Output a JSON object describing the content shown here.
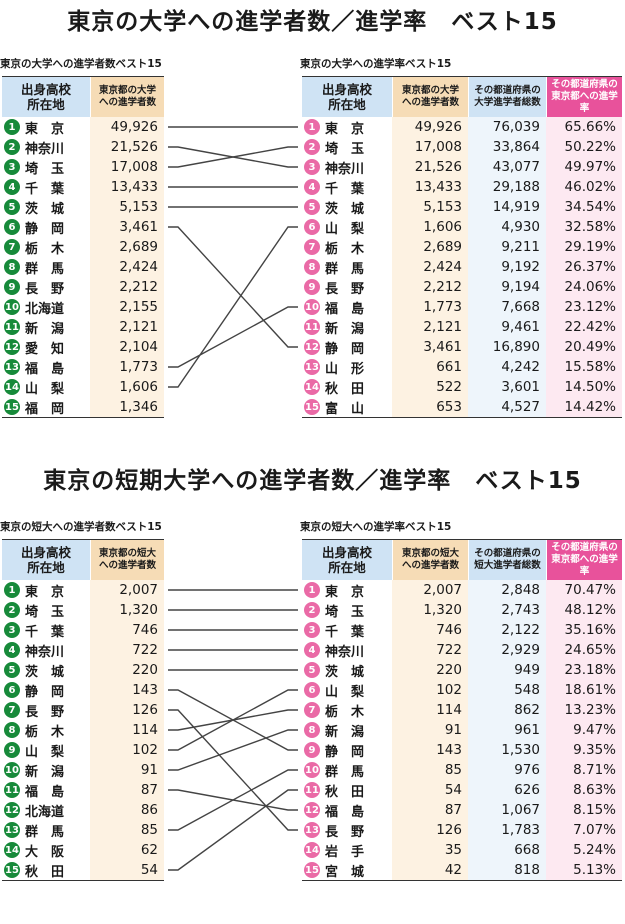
{
  "university": {
    "title": "東京の大学への進学者数／進学率　ベスト15",
    "count_table": {
      "caption": "東京の大学への進学者数ベスト15",
      "headers": {
        "pref": "出身高校\n所在地",
        "count": "東京都の大学\nへの進学者数"
      },
      "rows": [
        {
          "n": "1",
          "pref": "東　京",
          "count": "49,926"
        },
        {
          "n": "2",
          "pref": "神奈川",
          "count": "21,526"
        },
        {
          "n": "3",
          "pref": "埼　玉",
          "count": "17,008"
        },
        {
          "n": "4",
          "pref": "千　葉",
          "count": "13,433"
        },
        {
          "n": "5",
          "pref": "茨　城",
          "count": "5,153"
        },
        {
          "n": "6",
          "pref": "静　岡",
          "count": "3,461"
        },
        {
          "n": "7",
          "pref": "栃　木",
          "count": "2,689"
        },
        {
          "n": "8",
          "pref": "群　馬",
          "count": "2,424"
        },
        {
          "n": "9",
          "pref": "長　野",
          "count": "2,212"
        },
        {
          "n": "10",
          "pref": "北海道",
          "count": "2,155"
        },
        {
          "n": "11",
          "pref": "新　潟",
          "count": "2,121"
        },
        {
          "n": "12",
          "pref": "愛　知",
          "count": "2,104"
        },
        {
          "n": "13",
          "pref": "福　島",
          "count": "1,773"
        },
        {
          "n": "14",
          "pref": "山　梨",
          "count": "1,606"
        },
        {
          "n": "15",
          "pref": "福　岡",
          "count": "1,346"
        }
      ]
    },
    "rate_table": {
      "caption": "東京の大学への進学率ベスト15",
      "headers": {
        "pref": "出身高校\n所在地",
        "count": "東京都の大学\nへの進学者数",
        "total": "その都道府県の\n大学進学者総数",
        "rate": "その都道府県の\n東京都への進学率"
      },
      "rows": [
        {
          "n": "1",
          "pref": "東　京",
          "count": "49,926",
          "total": "76,039",
          "rate": "65.66%"
        },
        {
          "n": "2",
          "pref": "埼　玉",
          "count": "17,008",
          "total": "33,864",
          "rate": "50.22%"
        },
        {
          "n": "3",
          "pref": "神奈川",
          "count": "21,526",
          "total": "43,077",
          "rate": "49.97%"
        },
        {
          "n": "4",
          "pref": "千　葉",
          "count": "13,433",
          "total": "29,188",
          "rate": "46.02%"
        },
        {
          "n": "5",
          "pref": "茨　城",
          "count": "5,153",
          "total": "14,919",
          "rate": "34.54%"
        },
        {
          "n": "6",
          "pref": "山　梨",
          "count": "1,606",
          "total": "4,930",
          "rate": "32.58%"
        },
        {
          "n": "7",
          "pref": "栃　木",
          "count": "2,689",
          "total": "9,211",
          "rate": "29.19%"
        },
        {
          "n": "8",
          "pref": "群　馬",
          "count": "2,424",
          "total": "9,192",
          "rate": "26.37%"
        },
        {
          "n": "9",
          "pref": "長　野",
          "count": "2,212",
          "total": "9,194",
          "rate": "24.06%"
        },
        {
          "n": "10",
          "pref": "福　島",
          "count": "1,773",
          "total": "7,668",
          "rate": "23.12%"
        },
        {
          "n": "11",
          "pref": "新　潟",
          "count": "2,121",
          "total": "9,461",
          "rate": "22.42%"
        },
        {
          "n": "12",
          "pref": "静　岡",
          "count": "3,461",
          "total": "16,890",
          "rate": "20.49%"
        },
        {
          "n": "13",
          "pref": "山　形",
          "count": "661",
          "total": "4,242",
          "rate": "15.58%"
        },
        {
          "n": "14",
          "pref": "秋　田",
          "count": "522",
          "total": "3,601",
          "rate": "14.50%"
        },
        {
          "n": "15",
          "pref": "富　山",
          "count": "653",
          "total": "4,527",
          "rate": "14.42%"
        }
      ]
    },
    "links": [
      [
        1,
        1
      ],
      [
        2,
        3
      ],
      [
        3,
        2
      ],
      [
        4,
        4
      ],
      [
        5,
        5
      ],
      [
        6,
        12
      ],
      [
        13,
        10
      ],
      [
        14,
        6
      ]
    ]
  },
  "junior": {
    "title": "東京の短期大学への進学者数／進学率　ベスト15",
    "count_table": {
      "caption": "東京の短大への進学者数ベスト15",
      "headers": {
        "pref": "出身高校\n所在地",
        "count": "東京都の短大\nへの進学者数"
      },
      "rows": [
        {
          "n": "1",
          "pref": "東　京",
          "count": "2,007"
        },
        {
          "n": "2",
          "pref": "埼　玉",
          "count": "1,320"
        },
        {
          "n": "3",
          "pref": "千　葉",
          "count": "746"
        },
        {
          "n": "4",
          "pref": "神奈川",
          "count": "722"
        },
        {
          "n": "5",
          "pref": "茨　城",
          "count": "220"
        },
        {
          "n": "6",
          "pref": "静　岡",
          "count": "143"
        },
        {
          "n": "7",
          "pref": "長　野",
          "count": "126"
        },
        {
          "n": "8",
          "pref": "栃　木",
          "count": "114"
        },
        {
          "n": "9",
          "pref": "山　梨",
          "count": "102"
        },
        {
          "n": "10",
          "pref": "新　潟",
          "count": "91"
        },
        {
          "n": "11",
          "pref": "福　島",
          "count": "87"
        },
        {
          "n": "12",
          "pref": "北海道",
          "count": "86"
        },
        {
          "n": "13",
          "pref": "群　馬",
          "count": "85"
        },
        {
          "n": "14",
          "pref": "大　阪",
          "count": "62"
        },
        {
          "n": "15",
          "pref": "秋　田",
          "count": "54"
        }
      ]
    },
    "rate_table": {
      "caption": "東京の短大への進学率ベスト15",
      "headers": {
        "pref": "出身高校\n所在地",
        "count": "東京都の短大\nへの進学者数",
        "total": "その都道府県の\n短大進学者総数",
        "rate": "その都道府県の\n東京都への進学率"
      },
      "rows": [
        {
          "n": "1",
          "pref": "東　京",
          "count": "2,007",
          "total": "2,848",
          "rate": "70.47%"
        },
        {
          "n": "2",
          "pref": "埼　玉",
          "count": "1,320",
          "total": "2,743",
          "rate": "48.12%"
        },
        {
          "n": "3",
          "pref": "千　葉",
          "count": "746",
          "total": "2,122",
          "rate": "35.16%"
        },
        {
          "n": "4",
          "pref": "神奈川",
          "count": "722",
          "total": "2,929",
          "rate": "24.65%"
        },
        {
          "n": "5",
          "pref": "茨　城",
          "count": "220",
          "total": "949",
          "rate": "23.18%"
        },
        {
          "n": "6",
          "pref": "山　梨",
          "count": "102",
          "total": "548",
          "rate": "18.61%"
        },
        {
          "n": "7",
          "pref": "栃　木",
          "count": "114",
          "total": "862",
          "rate": "13.23%"
        },
        {
          "n": "8",
          "pref": "新　潟",
          "count": "91",
          "total": "961",
          "rate": "9.47%"
        },
        {
          "n": "9",
          "pref": "静　岡",
          "count": "143",
          "total": "1,530",
          "rate": "9.35%"
        },
        {
          "n": "10",
          "pref": "群　馬",
          "count": "85",
          "total": "976",
          "rate": "8.71%"
        },
        {
          "n": "11",
          "pref": "秋　田",
          "count": "54",
          "total": "626",
          "rate": "8.63%"
        },
        {
          "n": "12",
          "pref": "福　島",
          "count": "87",
          "total": "1,067",
          "rate": "8.15%"
        },
        {
          "n": "13",
          "pref": "長　野",
          "count": "126",
          "total": "1,783",
          "rate": "7.07%"
        },
        {
          "n": "14",
          "pref": "岩　手",
          "count": "35",
          "total": "668",
          "rate": "5.24%"
        },
        {
          "n": "15",
          "pref": "宮　城",
          "count": "42",
          "total": "818",
          "rate": "5.13%"
        }
      ]
    },
    "links": [
      [
        1,
        1
      ],
      [
        2,
        2
      ],
      [
        3,
        3
      ],
      [
        4,
        4
      ],
      [
        5,
        5
      ],
      [
        6,
        9
      ],
      [
        7,
        13
      ],
      [
        8,
        7
      ],
      [
        9,
        6
      ],
      [
        10,
        8
      ],
      [
        11,
        12
      ],
      [
        13,
        10
      ],
      [
        15,
        11
      ]
    ]
  },
  "colors": {
    "green_badge": "#178a3a",
    "pink_badge": "#ea6aa6",
    "pink_header": "#e8529b",
    "blue_header": "#cfe3f4",
    "orange_header": "#f6dcb6"
  }
}
